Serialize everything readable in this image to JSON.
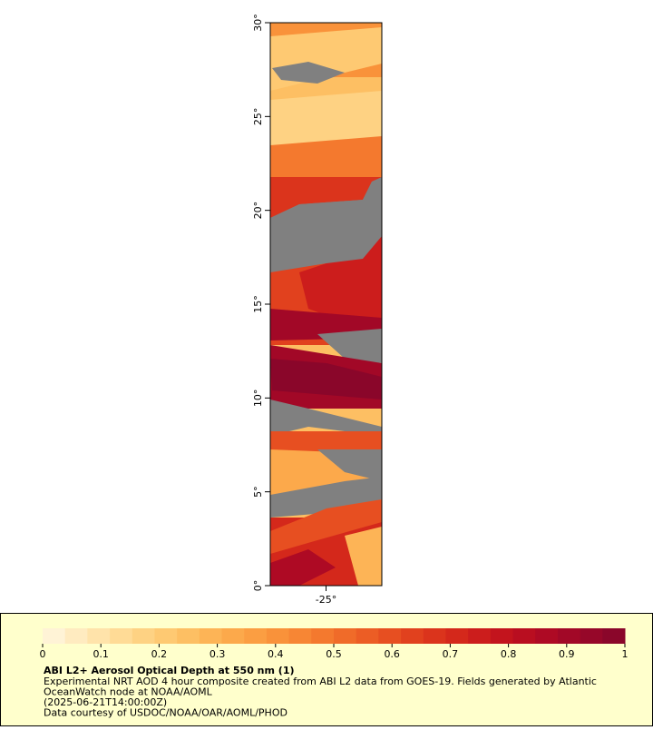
{
  "map": {
    "ylim": [
      0,
      30
    ],
    "yticks": [
      {
        "value": 0,
        "label": "0°"
      },
      {
        "value": 5,
        "label": "5°"
      },
      {
        "value": 10,
        "label": "10°"
      },
      {
        "value": 15,
        "label": "15°"
      },
      {
        "value": 20,
        "label": "20°"
      },
      {
        "value": 25,
        "label": "25°"
      },
      {
        "value": 30,
        "label": "30°"
      }
    ],
    "xlim": [
      -28,
      -22
    ],
    "xticks": [
      {
        "value": -25,
        "label": "-25°"
      }
    ]
  },
  "colorbar": {
    "range": [
      0,
      1
    ],
    "ticks": [
      0,
      0.1,
      0.2,
      0.3,
      0.4,
      0.5,
      0.6,
      0.7,
      0.8,
      0.9,
      1
    ],
    "colors": [
      "#fff3d6",
      "#ffebc0",
      "#ffe3aa",
      "#ffdb96",
      "#fed283",
      "#fec972",
      "#fdbf63",
      "#fdb456",
      "#fca94b",
      "#fb9e42",
      "#f9923a",
      "#f78634",
      "#f4792e",
      "#f06b29",
      "#ec5d25",
      "#e74f21",
      "#e1411e",
      "#db341c",
      "#d4281b",
      "#cc1d1c",
      "#c3141d",
      "#b90e20",
      "#ae0a24",
      "#a20827",
      "#960729",
      "#8a062a"
    ],
    "title": "ABI L2+ Aerosol Optical Depth at 550 nm (1)",
    "lines": [
      "Experimental NRT AOD 4 hour composite created from ABI L2 data from GOES-19. Fields generated by Atlantic",
      "OceanWatch node at NOAA/AOML",
      "(2025-06-21T14:00:00Z)",
      "Data courtesy of USDOC/NOAA/OAR/AOML/PHOD"
    ]
  }
}
